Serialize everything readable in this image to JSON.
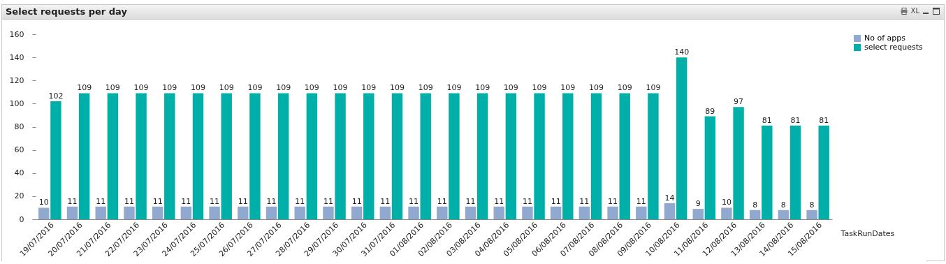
{
  "chart_data": {
    "type": "bar",
    "title": "Select requests per day",
    "xlabel": "TaskRunDates",
    "annotations": [
      "XL"
    ],
    "categories": [
      "19/07/2016",
      "20/07/2016",
      "21/07/2016",
      "22/07/2016",
      "23/07/2016",
      "24/07/2016",
      "25/07/2016",
      "26/07/2016",
      "27/07/2016",
      "28/07/2016",
      "29/07/2016",
      "30/07/2016",
      "31/07/2016",
      "01/08/2016",
      "02/08/2016",
      "03/08/2016",
      "04/08/2016",
      "05/08/2016",
      "06/08/2016",
      "07/08/2016",
      "08/08/2016",
      "09/08/2016",
      "10/08/2016",
      "11/08/2016",
      "12/08/2016",
      "13/08/2016",
      "14/08/2016",
      "15/08/2016"
    ],
    "series": [
      {
        "name": "No of apps",
        "color": "#92a9cf",
        "values": [
          10,
          11,
          11,
          11,
          11,
          11,
          11,
          11,
          11,
          11,
          11,
          11,
          11,
          11,
          11,
          11,
          11,
          11,
          11,
          11,
          11,
          11,
          14,
          9,
          10,
          8,
          8,
          8
        ]
      },
      {
        "name": "select requests",
        "color": "#00b0a8",
        "values": [
          102,
          109,
          109,
          109,
          109,
          109,
          109,
          109,
          109,
          109,
          109,
          109,
          109,
          109,
          109,
          109,
          109,
          109,
          109,
          109,
          109,
          109,
          140,
          89,
          97,
          81,
          81,
          81
        ]
      }
    ],
    "ylim": [
      0,
      160
    ],
    "yticks": [
      0,
      20,
      40,
      60,
      80,
      100,
      120,
      140,
      160
    ],
    "grid": false,
    "legend": "right",
    "data_labels": true
  }
}
